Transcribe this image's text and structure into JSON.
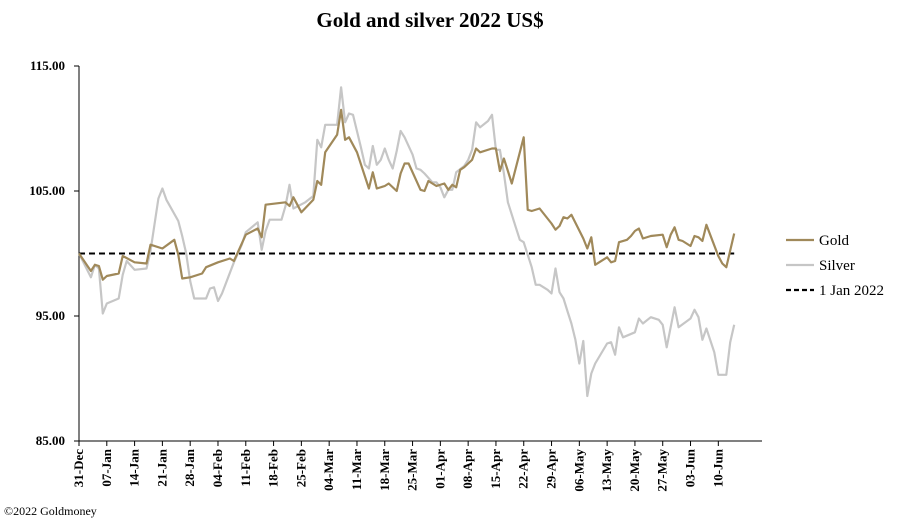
{
  "chart_data": {
    "type": "line",
    "title": "Gold and silver 2022  US$",
    "xlabel": "",
    "ylabel": "",
    "ylim": [
      85,
      115
    ],
    "yticks": [
      "85.00",
      "95.00",
      "105.00",
      "115.00"
    ],
    "xtick_labels": [
      "31-Dec",
      "07-Jan",
      "14-Jan",
      "21-Jan",
      "28-Jan",
      "04-Feb",
      "11-Feb",
      "18-Feb",
      "25-Feb",
      "04-Mar",
      "11-Mar",
      "18-Mar",
      "25-Mar",
      "01-Apr",
      "08-Apr",
      "15-Apr",
      "22-Apr",
      "29-Apr",
      "06-May",
      "13-May",
      "20-May",
      "27-May",
      "03-Jun",
      "10-Jun"
    ],
    "x_range_days": [
      0,
      172
    ],
    "legend_position": "right",
    "grid": false,
    "series": [
      {
        "name": "Gold",
        "color": "#a0895a",
        "points": [
          [
            0,
            100
          ],
          [
            3,
            98.6
          ],
          [
            4,
            99.1
          ],
          [
            5,
            99
          ],
          [
            6,
            97.9
          ],
          [
            7,
            98.2
          ],
          [
            10,
            98.4
          ],
          [
            11,
            99.8
          ],
          [
            14,
            99.3
          ],
          [
            17,
            99.2
          ],
          [
            18,
            100.7
          ],
          [
            21,
            100.4
          ],
          [
            24,
            101.1
          ],
          [
            25,
            99.9
          ],
          [
            26,
            98
          ],
          [
            28,
            98.1
          ],
          [
            31,
            98.4
          ],
          [
            32,
            98.9
          ],
          [
            35,
            99.3
          ],
          [
            38,
            99.6
          ],
          [
            39,
            99.4
          ],
          [
            42,
            101.5
          ],
          [
            45,
            102
          ],
          [
            46,
            101.3
          ],
          [
            47,
            103.9
          ],
          [
            52,
            104.1
          ],
          [
            53,
            103.8
          ],
          [
            54,
            104.5
          ],
          [
            56,
            103.3
          ],
          [
            59,
            104.3
          ],
          [
            60,
            105.8
          ],
          [
            61,
            105.5
          ],
          [
            62,
            108.1
          ],
          [
            65,
            109.5
          ],
          [
            66,
            111.5
          ],
          [
            67,
            109.1
          ],
          [
            68,
            109.3
          ],
          [
            70,
            108.1
          ],
          [
            73,
            105.2
          ],
          [
            74,
            106.5
          ],
          [
            75,
            105.2
          ],
          [
            77,
            105.4
          ],
          [
            78,
            105.6
          ],
          [
            80,
            105
          ],
          [
            81,
            106.4
          ],
          [
            82,
            107.2
          ],
          [
            83,
            107.2
          ],
          [
            86,
            105.1
          ],
          [
            87,
            105
          ],
          [
            88,
            105.8
          ],
          [
            89,
            105.6
          ],
          [
            90,
            105.4
          ],
          [
            92,
            105.6
          ],
          [
            93,
            105.1
          ],
          [
            94,
            105.5
          ],
          [
            95,
            105.3
          ],
          [
            96,
            106.7
          ],
          [
            97,
            106.9
          ],
          [
            98,
            107.2
          ],
          [
            99,
            107.5
          ],
          [
            100,
            108.4
          ],
          [
            101,
            108.1
          ],
          [
            104,
            108.4
          ],
          [
            105,
            108.4
          ],
          [
            106,
            106.6
          ],
          [
            107,
            107.6
          ],
          [
            108,
            106.6
          ],
          [
            109,
            105.6
          ],
          [
            112,
            109.3
          ],
          [
            113,
            103.5
          ],
          [
            114,
            103.4
          ],
          [
            116,
            103.6
          ],
          [
            119,
            102.4
          ],
          [
            120,
            101.9
          ],
          [
            121,
            102.2
          ],
          [
            122,
            102.9
          ],
          [
            123,
            102.8
          ],
          [
            124,
            103.1
          ],
          [
            127,
            101.2
          ],
          [
            128,
            100.4
          ],
          [
            129,
            101.3
          ],
          [
            130,
            99.1
          ],
          [
            133,
            99.7
          ],
          [
            134,
            99.3
          ],
          [
            135,
            99.4
          ],
          [
            136,
            100.9
          ],
          [
            138,
            101.1
          ],
          [
            139,
            101.4
          ],
          [
            140,
            101.8
          ],
          [
            141,
            102
          ],
          [
            142,
            101.2
          ],
          [
            144,
            101.4
          ],
          [
            147,
            101.5
          ],
          [
            148,
            100.5
          ],
          [
            149,
            101.5
          ],
          [
            150,
            102.1
          ],
          [
            151,
            101.1
          ],
          [
            152,
            101
          ],
          [
            154,
            100.6
          ],
          [
            155,
            101.4
          ],
          [
            156,
            101.3
          ],
          [
            157,
            101
          ],
          [
            158,
            102.3
          ],
          [
            161,
            99.8
          ],
          [
            162,
            99.2
          ],
          [
            163,
            98.9
          ],
          [
            165,
            101.6
          ]
        ]
      },
      {
        "name": "Silver",
        "color": "#c6c6c6",
        "points": [
          [
            0,
            100
          ],
          [
            3,
            98.1
          ],
          [
            4,
            99.1
          ],
          [
            5,
            98.8
          ],
          [
            6,
            95.2
          ],
          [
            7,
            96
          ],
          [
            10,
            96.4
          ],
          [
            11,
            98.3
          ],
          [
            12,
            99.4
          ],
          [
            14,
            98.7
          ],
          [
            17,
            98.8
          ],
          [
            18,
            100.2
          ],
          [
            20,
            104.4
          ],
          [
            21,
            105.2
          ],
          [
            22,
            104.3
          ],
          [
            25,
            102.6
          ],
          [
            26,
            101.4
          ],
          [
            27,
            100
          ],
          [
            28,
            97.8
          ],
          [
            29,
            96.4
          ],
          [
            32,
            96.4
          ],
          [
            33,
            97.2
          ],
          [
            34,
            97.3
          ],
          [
            35,
            96.2
          ],
          [
            36,
            96.8
          ],
          [
            39,
            99.3
          ],
          [
            41,
            100.7
          ],
          [
            42,
            101.7
          ],
          [
            45,
            102.5
          ],
          [
            46,
            100.3
          ],
          [
            47,
            101.8
          ],
          [
            48,
            102.7
          ],
          [
            51,
            102.7
          ],
          [
            52,
            103.8
          ],
          [
            53,
            105.5
          ],
          [
            54,
            103.6
          ],
          [
            57,
            104.1
          ],
          [
            59,
            104.6
          ],
          [
            60,
            109.1
          ],
          [
            61,
            108.5
          ],
          [
            62,
            110.3
          ],
          [
            65,
            110.3
          ],
          [
            66,
            113.3
          ],
          [
            67,
            110.5
          ],
          [
            68,
            111.2
          ],
          [
            69,
            111.1
          ],
          [
            71,
            108.5
          ],
          [
            72,
            107.1
          ],
          [
            73,
            106.8
          ],
          [
            74,
            108.6
          ],
          [
            75,
            107.1
          ],
          [
            76,
            107.5
          ],
          [
            77,
            108.4
          ],
          [
            78,
            107.5
          ],
          [
            79,
            106.8
          ],
          [
            80,
            108.2
          ],
          [
            81,
            109.8
          ],
          [
            82,
            109.3
          ],
          [
            84,
            107.9
          ],
          [
            85,
            106.8
          ],
          [
            86,
            106.7
          ],
          [
            87,
            106.4
          ],
          [
            89,
            105.7
          ],
          [
            90,
            105.7
          ],
          [
            91,
            105.3
          ],
          [
            92,
            104.5
          ],
          [
            93,
            105.1
          ],
          [
            94,
            105.1
          ],
          [
            95,
            106.5
          ],
          [
            97,
            107
          ],
          [
            98,
            107.5
          ],
          [
            99,
            108.3
          ],
          [
            100,
            110.5
          ],
          [
            101,
            110.1
          ],
          [
            103,
            110.6
          ],
          [
            104,
            111.1
          ],
          [
            105,
            108.3
          ],
          [
            106,
            108.3
          ],
          [
            107,
            106.4
          ],
          [
            108,
            104.1
          ],
          [
            110,
            102.1
          ],
          [
            111,
            101.1
          ],
          [
            112,
            100.9
          ],
          [
            113,
            99.9
          ],
          [
            114,
            98.9
          ],
          [
            115,
            97.5
          ],
          [
            116,
            97.5
          ],
          [
            118,
            97.1
          ],
          [
            119,
            96.8
          ],
          [
            120,
            98.8
          ],
          [
            121,
            96.9
          ],
          [
            122,
            96.4
          ],
          [
            123,
            95.4
          ],
          [
            124,
            94.4
          ],
          [
            125,
            93.1
          ],
          [
            126,
            91.2
          ],
          [
            127,
            93
          ],
          [
            128,
            88.6
          ],
          [
            129,
            90.4
          ],
          [
            130,
            91.2
          ],
          [
            133,
            92.8
          ],
          [
            134,
            92.9
          ],
          [
            135,
            91.9
          ],
          [
            136,
            94.1
          ],
          [
            137,
            93.3
          ],
          [
            140,
            93.7
          ],
          [
            141,
            94.8
          ],
          [
            142,
            94.4
          ],
          [
            144,
            94.9
          ],
          [
            146,
            94.7
          ],
          [
            147,
            94.3
          ],
          [
            148,
            92.5
          ],
          [
            150,
            95.7
          ],
          [
            151,
            94.1
          ],
          [
            154,
            94.8
          ],
          [
            155,
            95.5
          ],
          [
            156,
            94.9
          ],
          [
            157,
            93.1
          ],
          [
            158,
            94
          ],
          [
            160,
            92.1
          ],
          [
            161,
            90.3
          ],
          [
            163,
            90.3
          ],
          [
            164,
            92.9
          ],
          [
            165,
            94.3
          ]
        ]
      },
      {
        "name": "1 Jan 2022",
        "color": "#000000",
        "style": "dashed",
        "points": [
          [
            0,
            100
          ],
          [
            165,
            100
          ]
        ]
      }
    ]
  },
  "copyright": "©2022 Goldmoney"
}
